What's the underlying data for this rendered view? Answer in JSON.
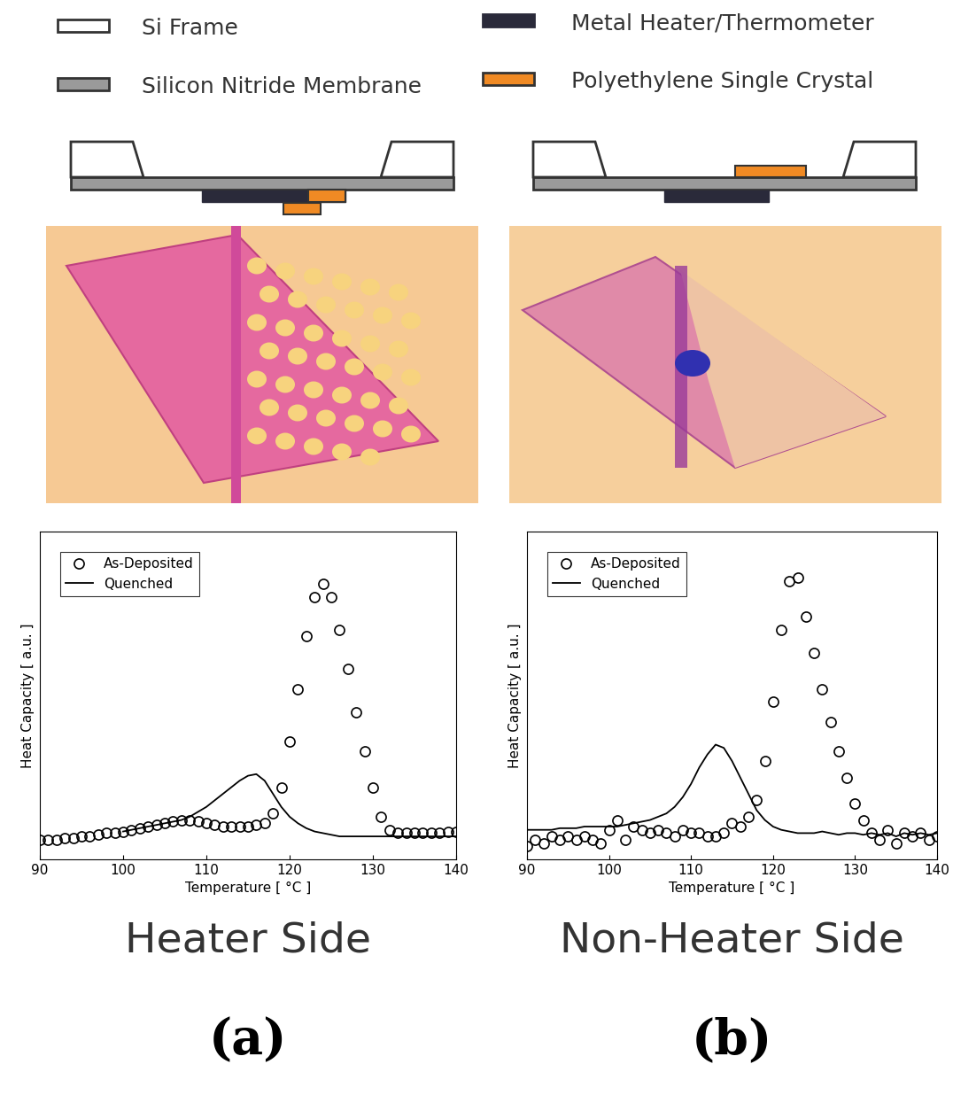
{
  "key": [
    "Si Frame",
    "Metal Heater/Thermometer",
    "Silicon Nitride Membrane",
    "Polyethylene Single Crystal"
  ],
  "chart_data": [
    {
      "type": "line",
      "caption": "Heater Side",
      "panel_label": "(a)",
      "x_label": "Temperature [ °C ]",
      "y_label": "Heat Capacity [ a.u. ]",
      "xlim": [
        90,
        140
      ],
      "xticks": [
        90,
        100,
        110,
        120,
        130,
        140
      ],
      "ylim": [
        0,
        1
      ],
      "tick_labels": "x",
      "legend": "upper left",
      "series": [
        {
          "name": "As-Deposited",
          "type": "scatter",
          "marker": "o",
          "color": "#000000",
          "x": [
            90,
            91,
            92,
            93,
            94,
            95,
            96,
            97,
            98,
            99,
            100,
            101,
            102,
            103,
            104,
            105,
            106,
            107,
            108,
            109,
            110,
            111,
            112,
            113,
            114,
            115,
            116,
            117,
            118,
            119,
            120,
            121,
            122,
            123,
            124,
            125,
            126,
            127,
            128,
            129,
            130,
            131,
            132,
            133,
            134,
            135,
            136,
            137,
            138,
            139,
            140
          ],
          "values": [
            0.06,
            0.06,
            0.06,
            0.065,
            0.065,
            0.07,
            0.07,
            0.075,
            0.08,
            0.08,
            0.085,
            0.09,
            0.095,
            0.1,
            0.105,
            0.11,
            0.115,
            0.12,
            0.12,
            0.115,
            0.11,
            0.105,
            0.1,
            0.1,
            0.1,
            0.1,
            0.105,
            0.11,
            0.14,
            0.22,
            0.36,
            0.52,
            0.68,
            0.8,
            0.84,
            0.8,
            0.7,
            0.58,
            0.45,
            0.33,
            0.22,
            0.13,
            0.09,
            0.08,
            0.08,
            0.08,
            0.08,
            0.08,
            0.08,
            0.085,
            0.085
          ]
        },
        {
          "name": "Quenched",
          "type": "line",
          "line_style": "solid",
          "color": "#000000",
          "x": [
            100,
            101,
            102,
            103,
            104,
            105,
            106,
            107,
            108,
            109,
            110,
            111,
            112,
            113,
            114,
            115,
            116,
            117,
            118,
            119,
            120,
            121,
            122,
            123,
            124,
            125,
            126,
            127,
            128,
            129,
            130,
            131,
            132,
            133,
            134,
            135,
            136,
            137,
            138,
            139,
            140
          ],
          "values": [
            0.085,
            0.09,
            0.095,
            0.1,
            0.105,
            0.11,
            0.115,
            0.12,
            0.13,
            0.145,
            0.16,
            0.18,
            0.2,
            0.22,
            0.24,
            0.255,
            0.26,
            0.24,
            0.2,
            0.16,
            0.13,
            0.11,
            0.095,
            0.085,
            0.08,
            0.075,
            0.07,
            0.07,
            0.07,
            0.07,
            0.07,
            0.07,
            0.07,
            0.07,
            0.07,
            0.07,
            0.07,
            0.07,
            0.07,
            0.07,
            0.07
          ]
        }
      ]
    },
    {
      "type": "line",
      "caption": "Non-Heater Side",
      "panel_label": "(b)",
      "x_label": "Temperature [ °C ]",
      "y_label": "Heat Capacity [ a.u. ]",
      "xlim": [
        90,
        140
      ],
      "xticks": [
        90,
        100,
        110,
        120,
        130,
        140
      ],
      "ylim": [
        0,
        1
      ],
      "tick_labels": "x",
      "legend": "upper left",
      "series": [
        {
          "name": "As-Deposited",
          "type": "scatter",
          "marker": "o",
          "color": "#000000",
          "x": [
            90,
            91,
            92,
            93,
            94,
            95,
            96,
            97,
            98,
            99,
            100,
            101,
            102,
            103,
            104,
            105,
            106,
            107,
            108,
            109,
            110,
            111,
            112,
            113,
            114,
            115,
            116,
            117,
            118,
            119,
            120,
            121,
            122,
            123,
            124,
            125,
            126,
            127,
            128,
            129,
            130,
            131,
            132,
            133,
            134,
            135,
            136,
            137,
            138,
            139,
            140
          ],
          "values": [
            0.04,
            0.06,
            0.05,
            0.07,
            0.06,
            0.07,
            0.06,
            0.07,
            0.06,
            0.05,
            0.09,
            0.12,
            0.06,
            0.1,
            0.09,
            0.08,
            0.09,
            0.08,
            0.07,
            0.09,
            0.08,
            0.08,
            0.07,
            0.07,
            0.08,
            0.11,
            0.1,
            0.13,
            0.18,
            0.3,
            0.48,
            0.7,
            0.85,
            0.86,
            0.74,
            0.63,
            0.52,
            0.42,
            0.33,
            0.25,
            0.17,
            0.12,
            0.08,
            0.06,
            0.09,
            0.05,
            0.08,
            0.07,
            0.08,
            0.06,
            0.07
          ]
        },
        {
          "name": "Quenched",
          "type": "line",
          "line_style": "solid",
          "color": "#000000",
          "x": [
            90,
            91,
            92,
            93,
            94,
            95,
            96,
            97,
            98,
            99,
            100,
            101,
            102,
            103,
            104,
            105,
            106,
            107,
            108,
            109,
            110,
            111,
            112,
            113,
            114,
            115,
            116,
            117,
            118,
            119,
            120,
            121,
            122,
            123,
            124,
            125,
            126,
            127,
            128,
            129,
            130,
            131,
            132,
            133,
            134,
            135,
            136,
            137,
            138,
            139,
            140
          ],
          "values": [
            0.09,
            0.09,
            0.09,
            0.09,
            0.095,
            0.095,
            0.095,
            0.1,
            0.1,
            0.1,
            0.1,
            0.1,
            0.105,
            0.11,
            0.115,
            0.12,
            0.13,
            0.14,
            0.16,
            0.19,
            0.23,
            0.28,
            0.32,
            0.35,
            0.34,
            0.3,
            0.25,
            0.2,
            0.15,
            0.12,
            0.1,
            0.09,
            0.085,
            0.08,
            0.08,
            0.08,
            0.085,
            0.08,
            0.075,
            0.08,
            0.08,
            0.075,
            0.08,
            0.075,
            0.08,
            0.07,
            0.08,
            0.075,
            0.08,
            0.075,
            0.08
          ]
        }
      ]
    }
  ]
}
